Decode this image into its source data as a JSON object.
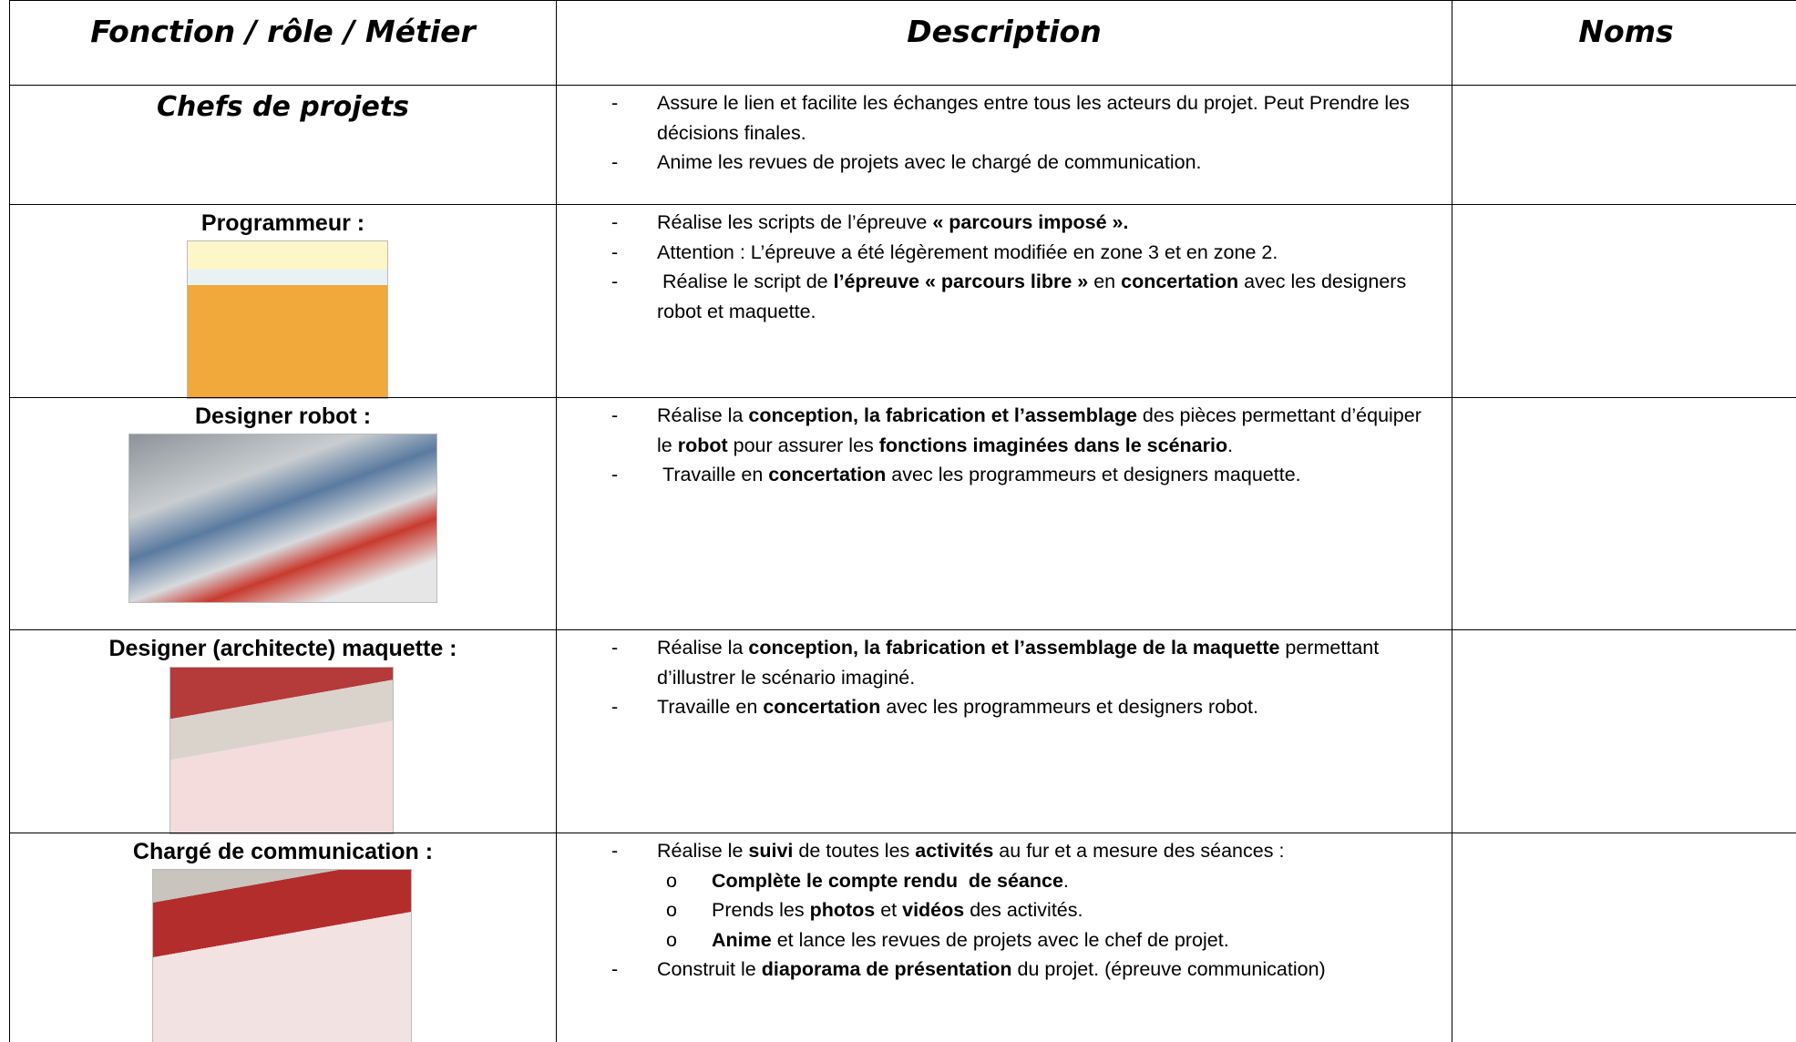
{
  "table": {
    "header": [
      "Fonction / rôle / Métier",
      "Description",
      "Noms"
    ],
    "rows": [
      {
        "role": "Chefs de projets",
        "items": [
          {
            "marker": "-",
            "runs": [
              {
                "text": "Assure le lien et facilite les échanges entre tous les acteurs du projet. Peut Prendre les décisions finales."
              }
            ]
          },
          {
            "marker": "-",
            "runs": [
              {
                "text": "Anime les revues de projets avec le chargé de communication."
              }
            ]
          }
        ]
      },
      {
        "role": "Programmeur :",
        "items": [
          {
            "marker": "-",
            "runs": [
              {
                "text": "Réalise les scripts de l’épreuve "
              },
              {
                "text": "« parcours imposé ».",
                "bold": true
              }
            ]
          },
          {
            "marker": "-",
            "runs": [
              {
                "text": "Attention : L’épreuve a été légèrement modifiée en zone 3 et en zone 2."
              }
            ]
          },
          {
            "marker": "-",
            "runs": [
              {
                "text": " Réalise le script de "
              },
              {
                "text": "l’épreuve « parcours libre »",
                "bold": true
              },
              {
                "text": " en "
              },
              {
                "text": "concertation",
                "bold": true
              },
              {
                "text": " avec les designers robot et maquette."
              }
            ]
          }
        ]
      },
      {
        "role": "Designer robot :",
        "items": [
          {
            "marker": "-",
            "runs": [
              {
                "text": "Réalise la "
              },
              {
                "text": "conception, la fabrication et l’assemblage",
                "bold": true
              },
              {
                "text": " des pièces permettant d’équiper le "
              },
              {
                "text": "robot",
                "bold": true
              },
              {
                "text": " pour assurer les "
              },
              {
                "text": "fonctions imaginées dans le scénario",
                "bold": true
              },
              {
                "text": "."
              }
            ]
          },
          {
            "marker": "-",
            "runs": [
              {
                "text": " Travaille en "
              },
              {
                "text": "concertation",
                "bold": true
              },
              {
                "text": " avec les programmeurs et designers maquette."
              }
            ]
          }
        ]
      },
      {
        "role": "Designer (architecte) maquette :",
        "items": [
          {
            "marker": "-",
            "runs": [
              {
                "text": "Réalise la "
              },
              {
                "text": "conception, la fabrication et l’assemblage de la maquette",
                "bold": true
              },
              {
                "text": " permettant d’illustrer le scénario imaginé."
              }
            ]
          },
          {
            "marker": "-",
            "runs": [
              {
                "text": "Travaille en "
              },
              {
                "text": "concertation",
                "bold": true
              },
              {
                "text": " avec les programmeurs et designers robot."
              }
            ]
          }
        ]
      },
      {
        "role": "Chargé de communication :",
        "items": [
          {
            "marker": "-",
            "runs": [
              {
                "text": "Réalise le "
              },
              {
                "text": "suivi",
                "bold": true
              },
              {
                "text": " de toutes les "
              },
              {
                "text": "activités",
                "bold": true
              },
              {
                "text": " au fur et a mesure des séances :"
              }
            ]
          },
          {
            "marker": "o",
            "sub": true,
            "runs": [
              {
                "text": "Complète le compte rendu  de séance",
                "bold": true
              },
              {
                "text": "."
              }
            ]
          },
          {
            "marker": "o",
            "sub": true,
            "runs": [
              {
                "text": "Prends les "
              },
              {
                "text": "photos",
                "bold": true
              },
              {
                "text": " et "
              },
              {
                "text": "vidéos",
                "bold": true
              },
              {
                "text": " des activités."
              }
            ]
          },
          {
            "marker": "o",
            "sub": true,
            "runs": [
              {
                "text": "Anime",
                "bold": true
              },
              {
                "text": " et lance les revues de projets avec le chef de projet."
              }
            ]
          },
          {
            "marker": "-",
            "runs": [
              {
                "text": "Construit le "
              },
              {
                "text": "diaporama de présentation",
                "bold": true
              },
              {
                "text": " du projet. (épreuve communication)"
              }
            ]
          }
        ]
      }
    ]
  }
}
